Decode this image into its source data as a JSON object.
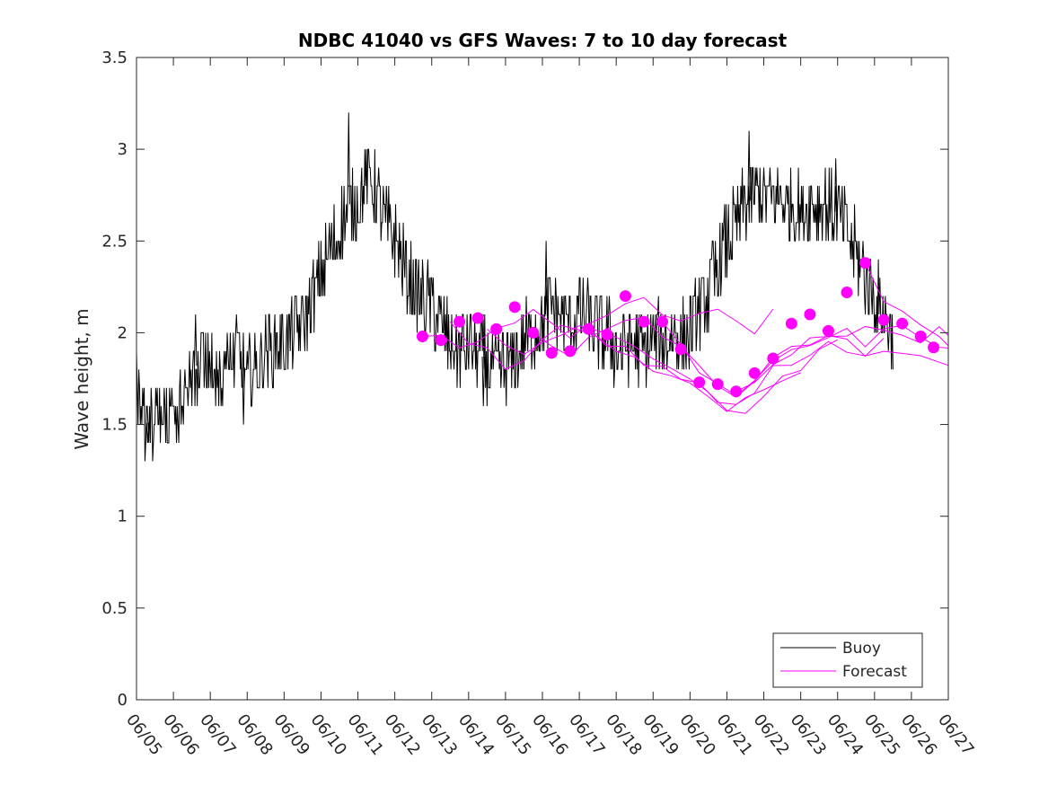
{
  "chart_data": {
    "type": "line",
    "title": "NDBC 41040 vs GFS Waves: 7 to 10 day forecast",
    "ylabel": "Wave height, m",
    "xlabel": "",
    "ylim": [
      0,
      3.5
    ],
    "xlim": [
      0,
      22
    ],
    "y_ticks": [
      0,
      0.5,
      1,
      1.5,
      2,
      2.5,
      3,
      3.5
    ],
    "y_tick_labels": [
      "0",
      "0.5",
      "1",
      "1.5",
      "2",
      "2.5",
      "3",
      "3.5"
    ],
    "x_tick_labels": [
      "06/05",
      "06/06",
      "06/07",
      "06/08",
      "06/09",
      "06/10",
      "06/11",
      "06/12",
      "06/13",
      "06/14",
      "06/15",
      "06/16",
      "06/17",
      "06/18",
      "06/19",
      "06/20",
      "06/21",
      "06/22",
      "06/23",
      "06/24",
      "06/25",
      "06/26",
      "06/27"
    ],
    "grid": false,
    "legend_position": "bottom-right",
    "colors": {
      "buoy": "#000000",
      "forecast": "#ff00ff"
    },
    "buoy": {
      "name": "Buoy",
      "anchors": [
        [
          0,
          1.65
        ],
        [
          0.25,
          1.5
        ],
        [
          0.5,
          1.55
        ],
        [
          0.75,
          1.5
        ],
        [
          1,
          1.6
        ],
        [
          1.25,
          1.6
        ],
        [
          1.5,
          1.8
        ],
        [
          1.75,
          1.85
        ],
        [
          2,
          1.8
        ],
        [
          2.25,
          1.8
        ],
        [
          2.5,
          1.85
        ],
        [
          2.75,
          1.9
        ],
        [
          3,
          1.75
        ],
        [
          3.25,
          1.8
        ],
        [
          3.5,
          1.9
        ],
        [
          4,
          1.95
        ],
        [
          4.5,
          2.05
        ],
        [
          5,
          2.3
        ],
        [
          5.25,
          2.45
        ],
        [
          5.5,
          2.55
        ],
        [
          5.75,
          2.7
        ],
        [
          6,
          2.7
        ],
        [
          6.25,
          2.85
        ],
        [
          6.5,
          2.75
        ],
        [
          6.75,
          2.6
        ],
        [
          7,
          2.5
        ],
        [
          7.25,
          2.35
        ],
        [
          7.5,
          2.25
        ],
        [
          7.75,
          2.2
        ],
        [
          8,
          2.15
        ],
        [
          8.25,
          2.05
        ],
        [
          8.5,
          1.95
        ],
        [
          8.75,
          1.9
        ],
        [
          9,
          1.95
        ],
        [
          9.25,
          1.9
        ],
        [
          9.5,
          1.85
        ],
        [
          9.75,
          1.8
        ],
        [
          10,
          1.8
        ],
        [
          10.25,
          1.85
        ],
        [
          10.5,
          1.95
        ],
        [
          10.75,
          2.0
        ],
        [
          11,
          2.05
        ],
        [
          11.25,
          2.15
        ],
        [
          11.5,
          2.1
        ],
        [
          11.75,
          2.05
        ],
        [
          12,
          2.1
        ],
        [
          12.25,
          2.05
        ],
        [
          12.5,
          2.0
        ],
        [
          12.75,
          2.0
        ],
        [
          13,
          1.9
        ],
        [
          13.25,
          1.9
        ],
        [
          13.5,
          1.95
        ],
        [
          13.75,
          1.9
        ],
        [
          14,
          1.95
        ],
        [
          14.25,
          1.95
        ],
        [
          14.5,
          2.0
        ],
        [
          14.75,
          1.95
        ],
        [
          15,
          2.0
        ],
        [
          15.25,
          2.1
        ],
        [
          15.5,
          2.2
        ],
        [
          15.75,
          2.35
        ],
        [
          16,
          2.5
        ],
        [
          16.25,
          2.6
        ],
        [
          16.5,
          2.7
        ],
        [
          16.75,
          2.75
        ],
        [
          17,
          2.75
        ],
        [
          17.25,
          2.75
        ],
        [
          17.5,
          2.7
        ],
        [
          17.75,
          2.7
        ],
        [
          18,
          2.65
        ],
        [
          18.25,
          2.7
        ],
        [
          18.5,
          2.7
        ],
        [
          18.75,
          2.7
        ],
        [
          19,
          2.65
        ],
        [
          19.25,
          2.55
        ],
        [
          19.5,
          2.45
        ],
        [
          19.75,
          2.3
        ],
        [
          20,
          2.2
        ],
        [
          20.25,
          2.1
        ],
        [
          20.5,
          2.0
        ]
      ],
      "peak_spikes": [
        [
          5.75,
          3.2
        ],
        [
          16.6,
          3.1
        ],
        [
          18.95,
          2.95
        ],
        [
          11.1,
          2.5
        ],
        [
          1.6,
          2.1
        ],
        [
          0.3,
          1.4
        ],
        [
          2.9,
          1.5
        ],
        [
          9.4,
          1.6
        ]
      ]
    },
    "forecast_markers": {
      "name": "Forecast",
      "x": [
        7.75,
        8.25,
        8.75,
        9.25,
        9.75,
        10.25,
        10.75,
        11.25,
        11.75,
        12.25,
        12.75,
        13.25,
        13.75,
        14.25,
        14.75,
        15.25,
        15.75,
        16.25,
        16.75,
        17.25,
        17.75,
        18.25,
        18.75,
        19.25,
        19.75,
        20.25,
        20.75,
        21.25
      ],
      "y": [
        1.98,
        1.96,
        2.06,
        2.08,
        2.02,
        2.14,
        2.0,
        1.89,
        1.9,
        2.02,
        1.99,
        2.2,
        2.06,
        2.06,
        1.91,
        1.73,
        1.72,
        1.68,
        1.78,
        1.86,
        2.05,
        2.1,
        2.01,
        2.22,
        2.38,
        2.07,
        2.05,
        1.98
      ]
    },
    "forecast_extra_marker": {
      "x": 21.6,
      "y": 1.92
    },
    "forecast_lines": [
      {
        "x": [
          7.75,
          8.25,
          8.75,
          9.25,
          9.75,
          10.25,
          10.75,
          11.25,
          11.75,
          12.25,
          12.75,
          13.25,
          13.75,
          14.25,
          14.75,
          15.25,
          15.75,
          16.25,
          16.75,
          17.25
        ],
        "y": [
          1.98,
          2.0,
          1.9,
          1.95,
          2.0,
          2.05,
          2.1,
          2.05,
          2.0,
          2.05,
          2.1,
          2.15,
          2.2,
          2.1,
          2.05,
          2.1,
          2.1,
          2.05,
          2.0,
          2.1
        ]
      },
      {
        "x": [
          8.5,
          9,
          9.5,
          10,
          10.5,
          11,
          11.5,
          12,
          12.5,
          13,
          13.5,
          14,
          14.5,
          15,
          15.5,
          16,
          16.5,
          17,
          17.5,
          18
        ],
        "y": [
          2.06,
          1.95,
          1.9,
          1.8,
          1.85,
          1.95,
          2.05,
          2.0,
          1.95,
          1.9,
          1.85,
          1.8,
          1.75,
          1.7,
          1.65,
          1.6,
          1.65,
          1.7,
          1.75,
          1.8
        ]
      },
      {
        "x": [
          9.5,
          10,
          10.5,
          11,
          11.5,
          12,
          12.5,
          13,
          13.5,
          14,
          14.5,
          15,
          15.5,
          16,
          16.5,
          17,
          17.5,
          18,
          18.5,
          19
        ],
        "y": [
          2.02,
          1.95,
          1.9,
          1.95,
          2.0,
          2.05,
          2.0,
          1.95,
          1.9,
          1.85,
          1.8,
          1.75,
          1.7,
          1.6,
          1.55,
          1.65,
          1.75,
          1.8,
          1.9,
          1.95
        ]
      },
      {
        "x": [
          10.75,
          11.25,
          11.75,
          12.25,
          12.75,
          13.25,
          13.75,
          14.25,
          14.75,
          15.25,
          15.75,
          16.25,
          16.75,
          17.25,
          17.75,
          18.25,
          18.75,
          19.25,
          19.75,
          20.25
        ],
        "y": [
          2.0,
          1.95,
          1.9,
          1.95,
          2.0,
          2.05,
          2.1,
          2.0,
          1.9,
          1.8,
          1.7,
          1.65,
          1.75,
          1.85,
          1.9,
          1.95,
          2.0,
          1.95,
          1.9,
          1.95
        ]
      },
      {
        "x": [
          12.25,
          12.75,
          13.25,
          13.75,
          14.25,
          14.75,
          15.25,
          15.75,
          16.25,
          16.75,
          17.25,
          17.75,
          18.25,
          18.75,
          19.25,
          19.75,
          20.25,
          20.75,
          21.25,
          22
        ],
        "y": [
          2.02,
          1.95,
          1.9,
          1.85,
          1.8,
          1.75,
          1.7,
          1.65,
          1.6,
          1.7,
          1.8,
          1.85,
          1.9,
          1.95,
          1.9,
          1.85,
          1.9,
          1.9,
          1.85,
          1.85
        ]
      },
      {
        "x": [
          14.25,
          14.75,
          15.25,
          15.75,
          16.25,
          16.75,
          17.25,
          17.75,
          18.25,
          18.75,
          19.25,
          19.75,
          20.25,
          20.75,
          21.25,
          21.75,
          22
        ],
        "y": [
          2.06,
          1.95,
          1.8,
          1.7,
          1.68,
          1.75,
          1.85,
          1.9,
          1.95,
          2.0,
          2.0,
          1.95,
          2.0,
          2.05,
          2.0,
          1.95,
          1.9
        ]
      },
      {
        "x": [
          16.25,
          16.75,
          17.25,
          17.75,
          18.25,
          18.75,
          19.25,
          19.75,
          20.25,
          20.75,
          21.25,
          21.75,
          22
        ],
        "y": [
          1.68,
          1.75,
          1.85,
          1.9,
          1.95,
          1.95,
          2.0,
          2.05,
          2.0,
          2.0,
          1.95,
          2.05,
          2.0
        ]
      },
      {
        "x": [
          19.75,
          20.25,
          20.75,
          21.25,
          21.75,
          22
        ],
        "y": [
          2.38,
          2.15,
          2.1,
          2.05,
          2.0,
          1.95
        ]
      }
    ]
  }
}
